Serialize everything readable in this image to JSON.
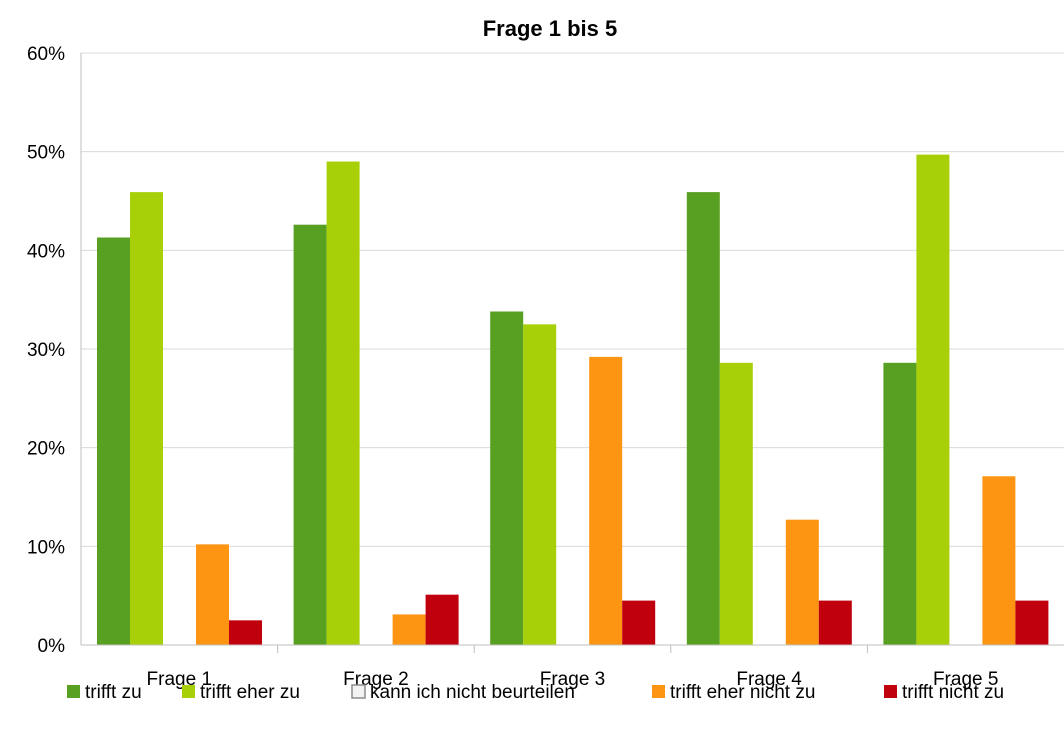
{
  "chart_data": {
    "type": "bar",
    "title": "Frage 1 bis 5",
    "xlabel": "",
    "ylabel": "",
    "categories": [
      "Frage 1",
      "Frage 2",
      "Frage 3",
      "Frage 4",
      "Frage 5"
    ],
    "ylim": [
      0,
      60
    ],
    "yticks": [
      "0%",
      "10%",
      "20%",
      "30%",
      "40%",
      "50%",
      "60%"
    ],
    "grid": true,
    "legend_position": "bottom",
    "series": [
      {
        "name": "trifft zu",
        "color": "#58a021",
        "values": [
          41.3,
          42.6,
          33.8,
          45.9,
          28.6
        ]
      },
      {
        "name": "trifft eher zu",
        "color": "#a8d008",
        "values": [
          45.9,
          49.0,
          32.5,
          28.6,
          49.7
        ]
      },
      {
        "name": "kann ich nicht beurteilen",
        "color": "#d9d9d9",
        "values": [
          0,
          0,
          0,
          0,
          0
        ]
      },
      {
        "name": "trifft eher nicht zu",
        "color": "#fd9412",
        "values": [
          10.2,
          3.1,
          29.2,
          12.7,
          17.1
        ]
      },
      {
        "name": "trifft nicht zu",
        "color": "#c0000c",
        "values": [
          2.5,
          5.1,
          4.5,
          4.5,
          4.5
        ]
      }
    ]
  }
}
